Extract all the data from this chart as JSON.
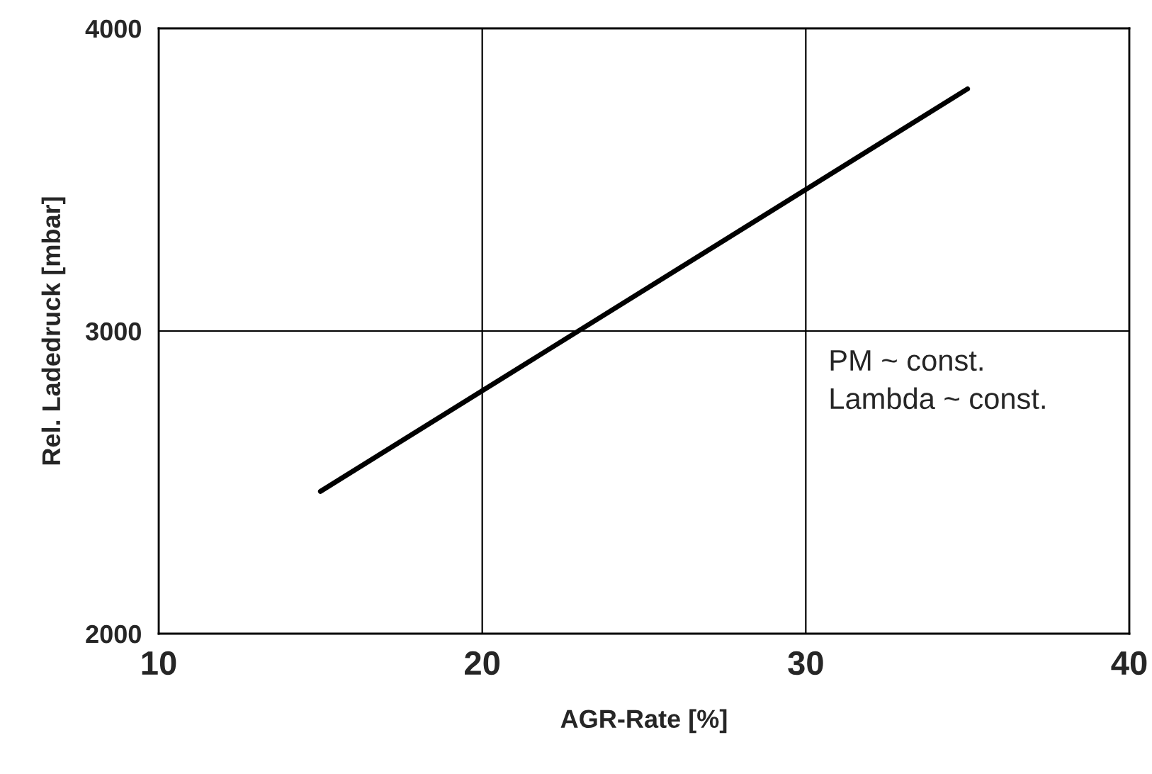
{
  "chart_data": {
    "type": "line",
    "xlabel": "AGR-Rate [%]",
    "ylabel": "Rel. Ladedruck [mbar]",
    "x": [
      15,
      35
    ],
    "series": [
      {
        "color": "#000000",
        "values": [
          2470,
          3800
        ]
      }
    ],
    "xlim": [
      10,
      40
    ],
    "xticks": [
      10,
      20,
      30,
      40
    ],
    "ylim": [
      2000,
      4000
    ],
    "yticks": [
      2000,
      3000,
      4000
    ],
    "grid": true,
    "marker": "none",
    "line_style": "solid",
    "annotations": [
      "PM ~ const.\nLambda ~ const."
    ]
  }
}
